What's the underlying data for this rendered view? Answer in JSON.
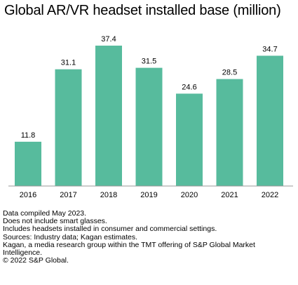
{
  "title": "Global AR/VR headset installed base (million)",
  "chart_data": {
    "type": "bar",
    "title": "Global AR/VR headset installed base (million)",
    "categories": [
      "2016",
      "2017",
      "2018",
      "2019",
      "2020",
      "2021",
      "2022"
    ],
    "values": [
      11.8,
      31.1,
      37.4,
      31.5,
      24.6,
      28.5,
      34.7
    ],
    "xlabel": "",
    "ylabel": "",
    "ylim": [
      0,
      37.4
    ],
    "grid": false,
    "bar_color": "#57bb9d",
    "axis_color": "#999999",
    "data_labels": true
  },
  "notes": [
    "Data compiled May 2023.",
    "Does not include smart glasses.",
    "Includes headsets installed in consumer and commercial settings.",
    "Sources: Industry data; Kagan estimates.",
    "Kagan, a media research group within the TMT offering of S&P Global Market",
    "Intelligence.",
    "© 2022 S&P Global."
  ]
}
